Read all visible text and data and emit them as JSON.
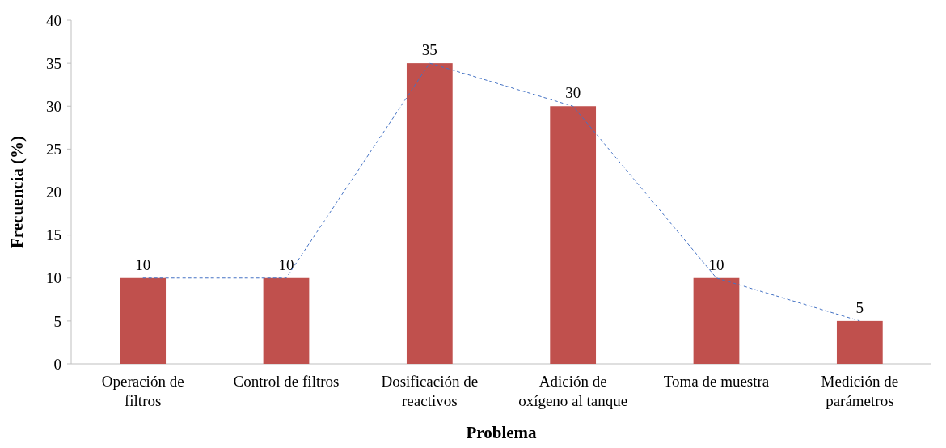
{
  "chart_data": {
    "type": "bar",
    "xlabel": "Problema",
    "ylabel": "Frecuencia (%)",
    "categories": [
      "Operación de\nfiltros",
      "Control de filtros",
      "Dosificación de\nreactivos",
      "Adición de\noxígeno al tanque",
      "Toma de muestra",
      "Medición de\nparámetros"
    ],
    "series": [
      {
        "color": "#c0504d",
        "values": [
          10,
          10,
          35,
          30,
          10,
          5
        ],
        "value_labels": [
          "10",
          "10",
          "35",
          "30",
          "10",
          "5"
        ]
      },
      {
        "type": "line",
        "color": "#4472c4",
        "values": [
          10,
          10,
          35,
          30,
          10,
          5
        ],
        "line_style": "dashed",
        "marker": "none"
      }
    ],
    "ylim": [
      0,
      40
    ],
    "yticks": [
      0,
      5,
      10,
      15,
      20,
      25,
      30,
      35,
      40
    ],
    "grid": false
  }
}
